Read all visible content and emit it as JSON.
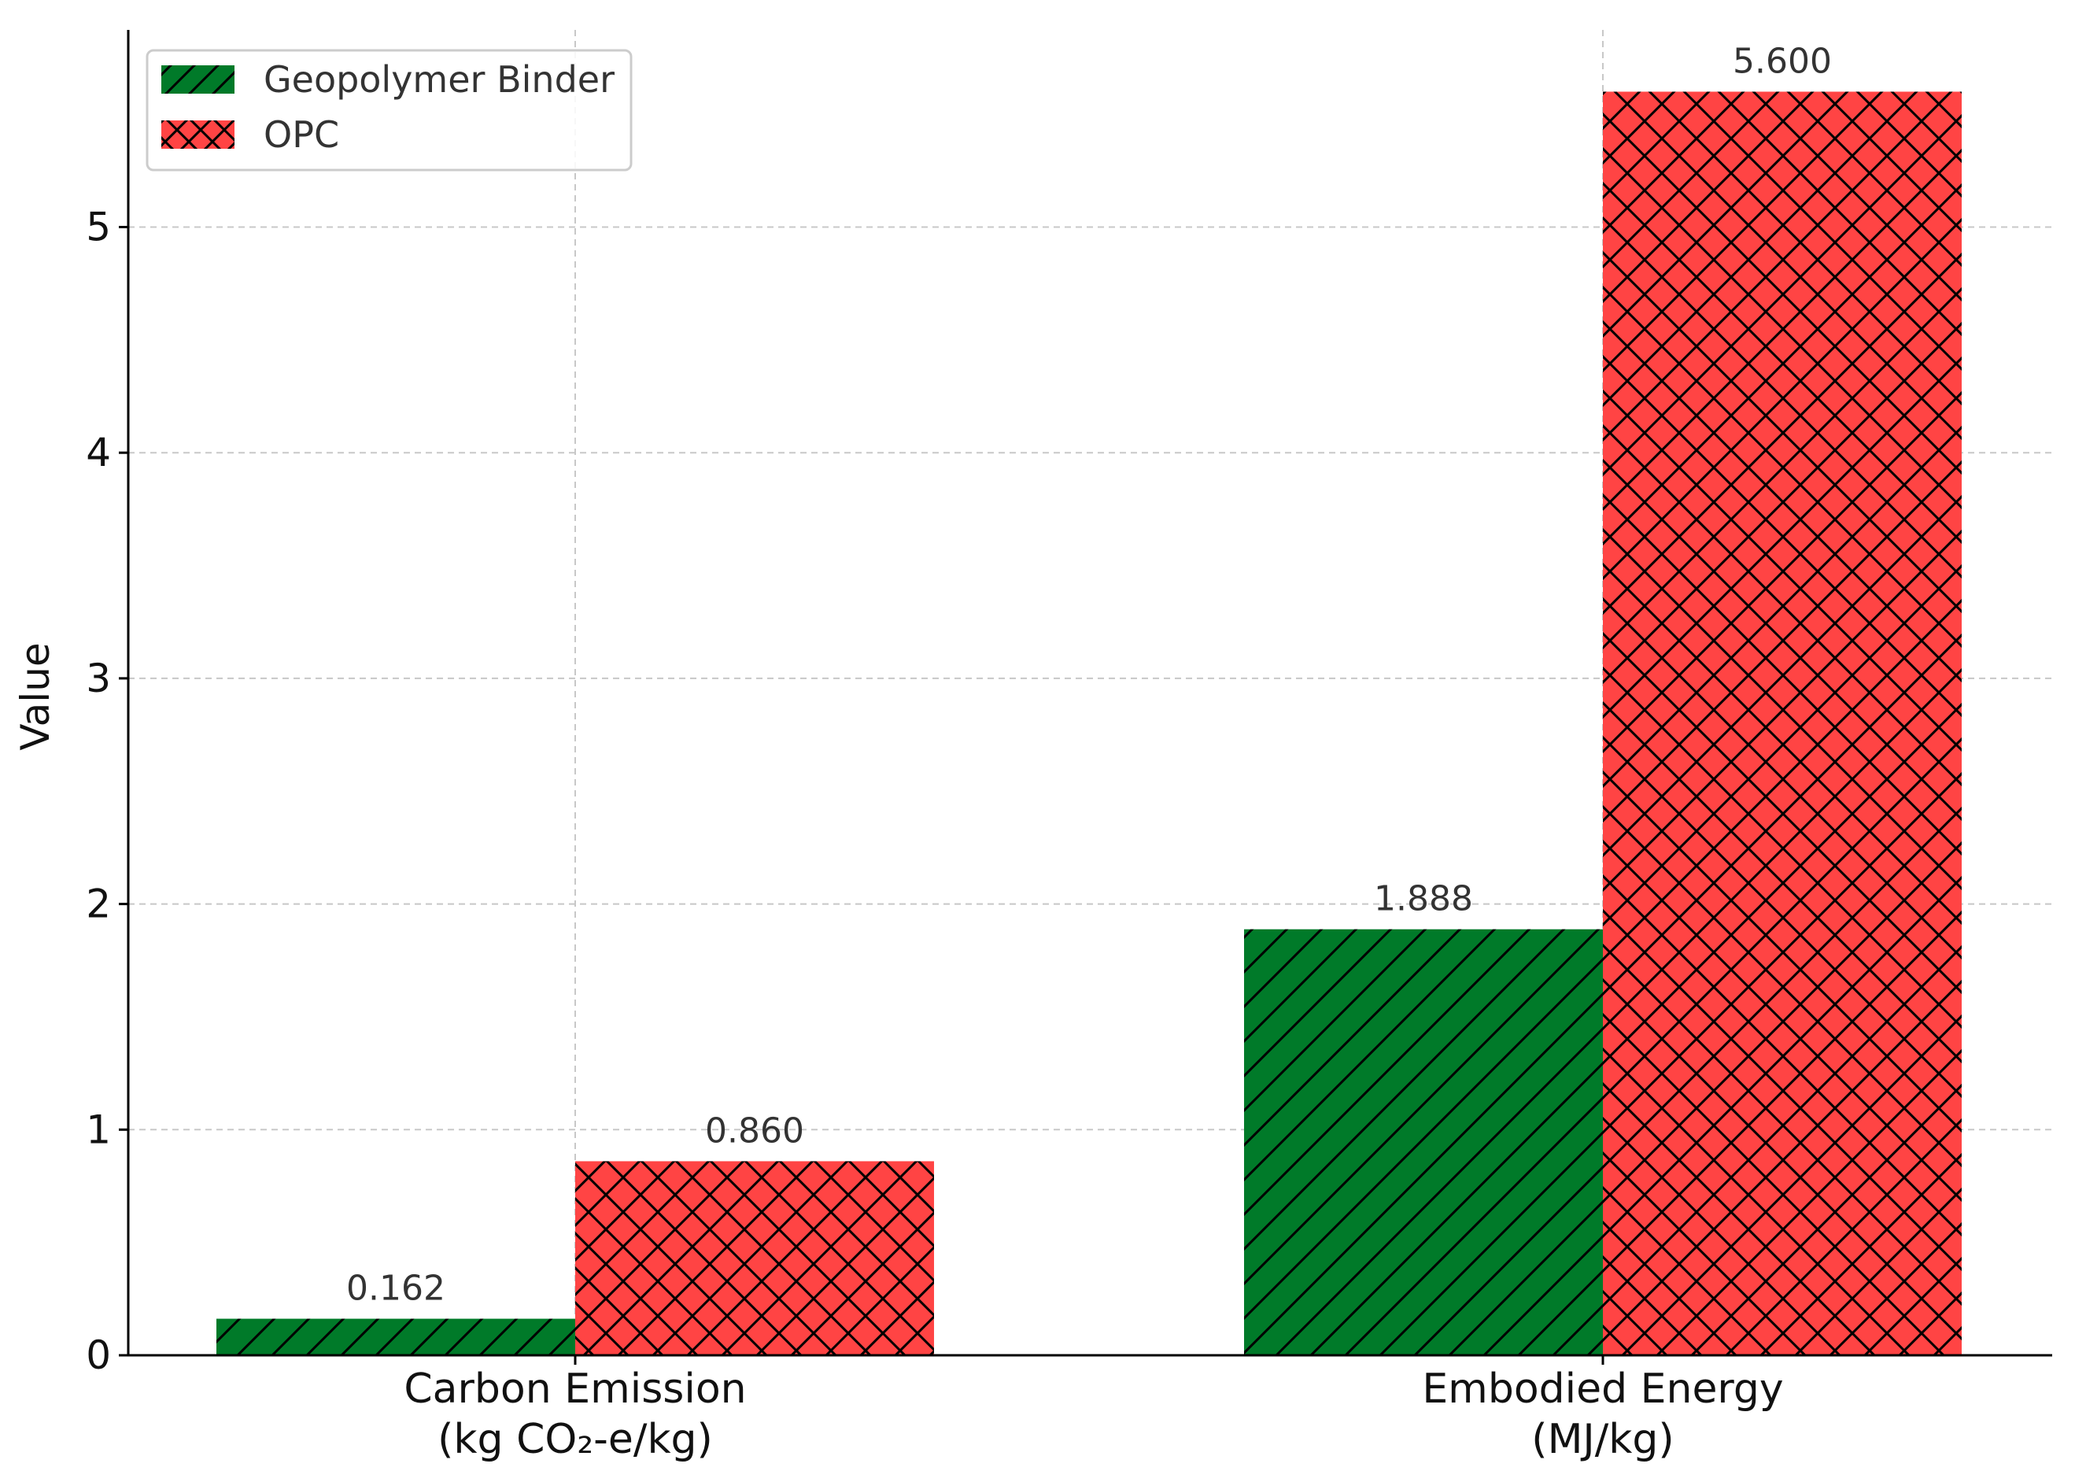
{
  "chart_data": {
    "type": "bar",
    "title": "",
    "xlabel": "",
    "ylabel": "Value",
    "ylim": [
      0,
      5.8
    ],
    "yticks": [
      "0",
      "1",
      "2",
      "3",
      "4",
      "5"
    ],
    "grid": true,
    "legend_position": "top-left",
    "categories": [
      {
        "line1": "Carbon Emission",
        "line2": "(kg CO₂-e/kg)"
      },
      {
        "line1": "Embodied Energy",
        "line2": "(MJ/kg)"
      }
    ],
    "series": [
      {
        "name": "Geopolymer Binder",
        "color": "#007a29",
        "hatch": "diagonal",
        "values": [
          0.162,
          1.888
        ],
        "labels": [
          "0.162",
          "1.888"
        ]
      },
      {
        "name": "OPC",
        "color": "#ff4444",
        "hatch": "crosshatch",
        "values": [
          0.86,
          5.6
        ],
        "labels": [
          "0.860",
          "5.600"
        ]
      }
    ]
  }
}
